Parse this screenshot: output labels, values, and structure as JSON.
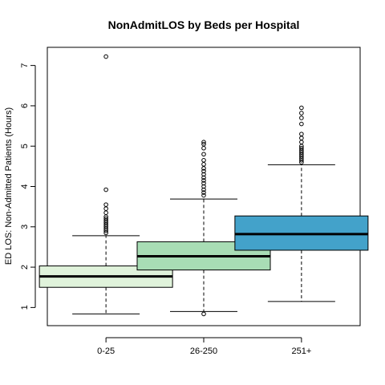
{
  "chart_data": {
    "type": "boxplot",
    "title": "NonAdmitLOS by Beds per Hospital",
    "xlabel": "",
    "ylabel": "ED LOS: Non-Admitted Patients (Hours)",
    "ylim": [
      0.55,
      7.45
    ],
    "yticks": [
      1,
      2,
      3,
      4,
      5,
      6,
      7
    ],
    "ytick_labels": [
      "1",
      "2",
      "3",
      "4",
      "5",
      "6",
      "7"
    ],
    "categories": [
      "0-25",
      "26-250",
      "251+"
    ],
    "colors": [
      "#e0f3db",
      "#a8ddb5",
      "#43a2ca"
    ],
    "grid": false,
    "boxes": [
      {
        "category": "0-25",
        "whisker_low": 0.84,
        "q1": 1.5,
        "median": 1.77,
        "q3": 2.03,
        "whisker_high": 2.78,
        "outliers": [
          2.85,
          2.9,
          2.95,
          3.0,
          3.05,
          3.1,
          3.15,
          3.2,
          3.25,
          3.35,
          3.45,
          3.55,
          3.92,
          7.22
        ]
      },
      {
        "category": "26-250",
        "whisker_low": 0.9,
        "q1": 1.93,
        "median": 2.27,
        "q3": 2.63,
        "whisker_high": 3.69,
        "outliers": [
          0.84,
          3.78,
          3.85,
          3.92,
          4.0,
          4.08,
          4.15,
          4.22,
          4.3,
          4.38,
          4.45,
          4.55,
          4.65,
          4.8,
          4.95,
          5.05,
          5.1
        ]
      },
      {
        "category": "251+",
        "whisker_low": 1.15,
        "q1": 2.42,
        "median": 2.82,
        "q3": 3.27,
        "whisker_high": 4.54,
        "outliers": [
          4.6,
          4.65,
          4.7,
          4.75,
          4.8,
          4.85,
          4.9,
          4.95,
          5.0,
          5.1,
          5.2,
          5.3,
          5.55,
          5.7,
          5.82,
          5.95
        ]
      }
    ]
  }
}
